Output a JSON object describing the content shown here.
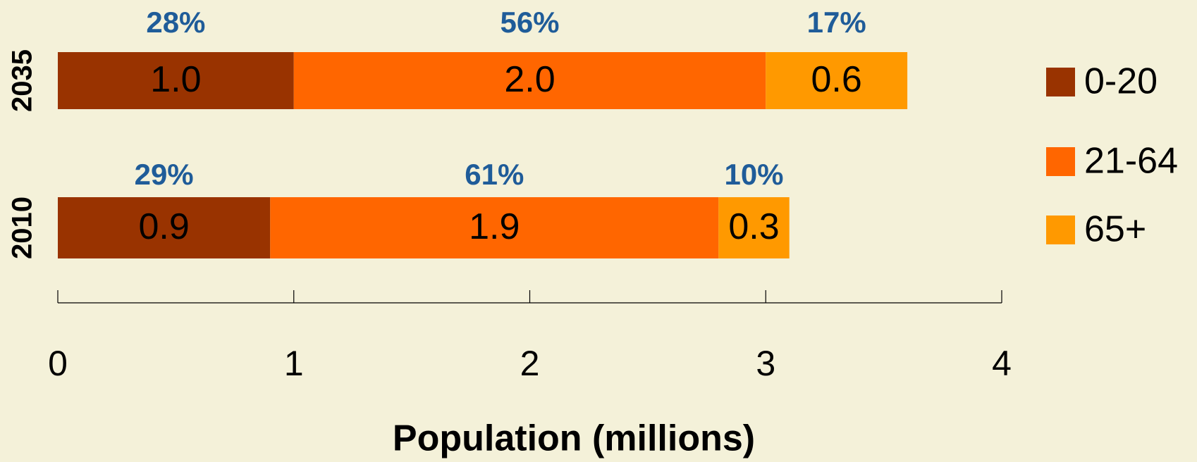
{
  "chart_data": {
    "type": "stacked-bar-horizontal",
    "categories": [
      "2035",
      "2010"
    ],
    "series": [
      {
        "name": "0-20",
        "color": "#993300",
        "values": [
          1.0,
          0.9
        ],
        "value_labels": [
          "1.0",
          "0.9"
        ],
        "percents": [
          28,
          29
        ],
        "percent_labels": [
          "28%",
          "29%"
        ]
      },
      {
        "name": "21-64",
        "color": "#ff6600",
        "values": [
          2.0,
          1.9
        ],
        "value_labels": [
          "2.0",
          "1.9"
        ],
        "percents": [
          56,
          61
        ],
        "percent_labels": [
          "56%",
          "61%"
        ]
      },
      {
        "name": "65+",
        "color": "#ff9900",
        "values": [
          0.6,
          0.3
        ],
        "value_labels": [
          "0.6",
          "0.3"
        ],
        "percents": [
          17,
          10
        ],
        "percent_labels": [
          "17%",
          "10%"
        ]
      }
    ],
    "xlabel": "Population (millions)",
    "xlim": [
      0,
      4
    ],
    "xticks": [
      0,
      1,
      2,
      3,
      4
    ],
    "legend": "right",
    "percent_color": "#1f5c99"
  }
}
